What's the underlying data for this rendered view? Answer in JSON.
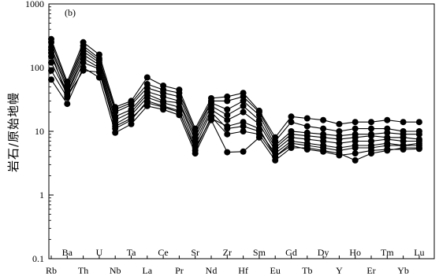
{
  "chart_data": {
    "type": "line",
    "title": "",
    "panel_label": "(b)",
    "ylabel": "岩石/原始地幔",
    "xlabel": "",
    "y_scale": "log",
    "ylim": [
      0.1,
      1000
    ],
    "y_ticks": [
      {
        "value": 0.1,
        "label": "0.1"
      },
      {
        "value": 1,
        "label": "1"
      },
      {
        "value": 10,
        "label": "10"
      },
      {
        "value": 100,
        "label": "100"
      },
      {
        "value": 1000,
        "label": "1000"
      }
    ],
    "categories": [
      "Rb",
      "Ba",
      "Th",
      "U",
      "Nb",
      "Ta",
      "La",
      "Ce",
      "Pr",
      "Sr",
      "Nd",
      "Zr",
      "Hf",
      "Sm",
      "Eu",
      "Gd",
      "Tb",
      "Dy",
      "Y",
      "Ho",
      "Er",
      "Tm",
      "Yb",
      "Lu"
    ],
    "grid": false,
    "legend": "none",
    "series": [
      {
        "values": [
          280,
          60,
          250,
          160,
          24,
          30,
          70,
          52,
          45,
          11,
          33,
          35,
          40,
          21,
          8,
          17,
          16,
          15,
          13,
          14,
          14,
          15,
          14,
          14
        ]
      },
      {
        "values": [
          250,
          55,
          220,
          140,
          22,
          28,
          55,
          45,
          40,
          10,
          30,
          30,
          35,
          20,
          7,
          14,
          12,
          11,
          10,
          11,
          11,
          11,
          10,
          10
        ]
      },
      {
        "values": [
          210,
          50,
          200,
          130,
          20,
          26,
          48,
          40,
          35,
          9,
          28,
          22,
          30,
          18,
          6,
          10,
          9.5,
          9,
          8.5,
          9,
          9,
          9.5,
          9,
          9
        ]
      },
      {
        "values": [
          190,
          45,
          180,
          120,
          17,
          22,
          42,
          35,
          30,
          8,
          25,
          18,
          25,
          15,
          5.5,
          9,
          8.5,
          8,
          7.5,
          8,
          8.5,
          8,
          8,
          7.5
        ]
      },
      {
        "values": [
          150,
          40,
          160,
          110,
          15,
          20,
          38,
          30,
          28,
          7,
          22,
          15,
          20,
          13,
          5,
          8,
          7.5,
          7,
          6.5,
          7,
          7,
          7.5,
          7,
          7
        ]
      },
      {
        "values": [
          120,
          38,
          140,
          100,
          13,
          18,
          34,
          28,
          24,
          6,
          20,
          11,
          12,
          10,
          4.5,
          7,
          6.5,
          6,
          5.5,
          6,
          6,
          6.5,
          6,
          6.5
        ]
      },
      {
        "values": [
          90,
          34,
          120,
          95,
          11,
          15,
          30,
          25,
          21,
          5,
          17,
          9,
          10,
          9,
          4,
          6.5,
          6,
          5.5,
          5,
          5.5,
          5.5,
          6,
          6,
          6
        ]
      },
      {
        "values": [
          65,
          27,
          100,
          70,
          9.5,
          13,
          25,
          22,
          18,
          4.5,
          15,
          4.7,
          4.8,
          8,
          3.5,
          5.5,
          5.5,
          5,
          4.5,
          3.5,
          4.5,
          5,
          5.5,
          5.5
        ]
      },
      {
        "values": [
          170,
          35,
          90,
          85,
          12,
          16,
          28,
          24,
          20,
          5.5,
          16,
          12,
          14,
          11,
          4,
          6,
          5.2,
          4.8,
          4.2,
          4.5,
          5,
          5.2,
          5.2,
          5.3
        ]
      }
    ]
  }
}
